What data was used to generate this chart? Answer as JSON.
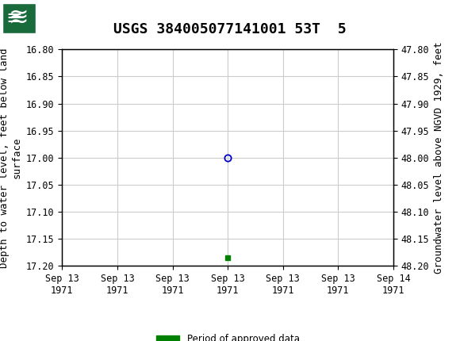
{
  "title": "USGS 384005077141001 53T  5",
  "ylabel_left": "Depth to water level, feet below land\nsurface",
  "ylabel_right": "Groundwater level above NGVD 1929, feet",
  "ylim_left": [
    16.8,
    17.2
  ],
  "ylim_right": [
    47.8,
    48.2
  ],
  "yticks_left": [
    16.8,
    16.85,
    16.9,
    16.95,
    17.0,
    17.05,
    17.1,
    17.15,
    17.2
  ],
  "yticks_right": [
    47.8,
    47.85,
    47.9,
    47.95,
    48.0,
    48.05,
    48.1,
    48.15,
    48.2
  ],
  "data_point_x": 3.0,
  "data_point_y": 17.0,
  "data_point_color": "#0000cc",
  "green_square_x": 3.0,
  "green_square_y": 17.185,
  "green_square_color": "#008000",
  "x_tick_labels": [
    "Sep 13\n1971",
    "Sep 13\n1971",
    "Sep 13\n1971",
    "Sep 13\n1971",
    "Sep 13\n1971",
    "Sep 13\n1971",
    "Sep 14\n1971"
  ],
  "xticks": [
    0,
    1,
    2,
    3,
    4,
    5,
    6
  ],
  "xlim": [
    0,
    6
  ],
  "background_color": "#ffffff",
  "plot_bg_color": "#ffffff",
  "grid_color": "#cccccc",
  "header_color": "#1a6b3c",
  "legend_label": "Period of approved data",
  "legend_color": "#008000",
  "title_fontsize": 13,
  "axis_fontsize": 9,
  "tick_fontsize": 8.5
}
